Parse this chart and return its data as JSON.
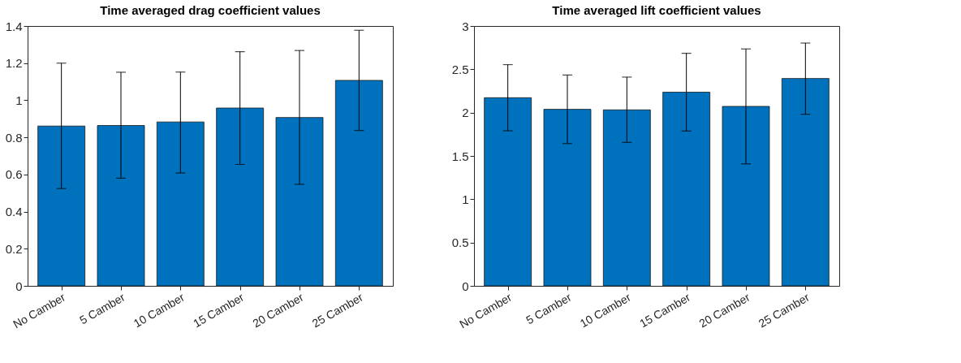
{
  "chart_data": [
    {
      "type": "bar",
      "title": "Time averaged drag coefficient values",
      "categories": [
        "No Camber",
        "5 Camber",
        "10 Camber",
        "15 Camber",
        "20 Camber",
        "25 Camber"
      ],
      "values": [
        0.861,
        0.864,
        0.883,
        0.958,
        0.907,
        1.107
      ],
      "color": "#0072bd",
      "errors": [
        [
          0.524,
          1.2
        ],
        [
          0.58,
          1.151
        ],
        [
          0.608,
          1.152
        ],
        [
          0.654,
          1.262
        ],
        [
          0.547,
          1.268
        ],
        [
          0.837,
          1.377
        ]
      ],
      "ylim": [
        0,
        1.4
      ],
      "yticks": [
        0,
        0.2,
        0.4,
        0.6,
        0.8,
        1,
        1.2,
        1.4
      ],
      "grid": false
    },
    {
      "type": "bar",
      "title": "Time averaged lift coefficient values",
      "categories": [
        "No Camber",
        "5 Camber",
        "10 Camber",
        "15 Camber",
        "20 Camber",
        "25 Camber"
      ],
      "values": [
        2.172,
        2.038,
        2.032,
        2.236,
        2.072,
        2.394
      ],
      "color": "#0072bd",
      "errors": [
        [
          1.79,
          2.554
        ],
        [
          1.643,
          2.434
        ],
        [
          1.656,
          2.41
        ],
        [
          1.787,
          2.685
        ],
        [
          1.408,
          2.735
        ],
        [
          1.981,
          2.803
        ]
      ],
      "ylim": [
        0,
        3
      ],
      "yticks": [
        0,
        0.5,
        1,
        1.5,
        2,
        2.5,
        3
      ],
      "grid": false
    }
  ]
}
